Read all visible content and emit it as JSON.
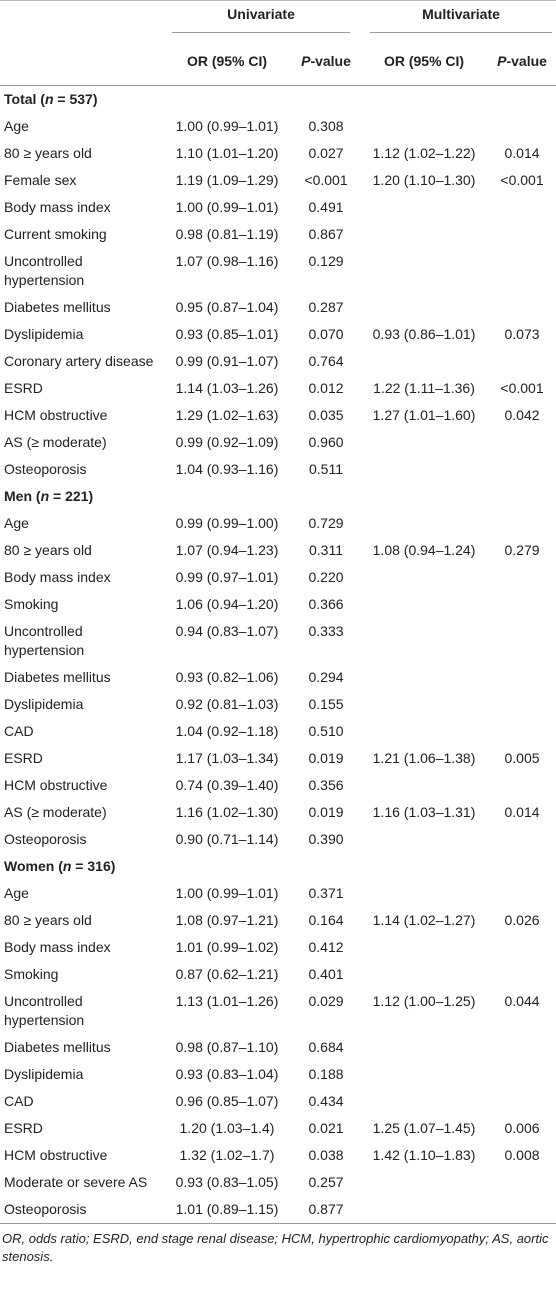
{
  "table": {
    "groups": [
      "Univariate",
      "Multivariate"
    ],
    "subheaders": {
      "or": "OR (95% CI)",
      "p": [
        "P",
        "-value"
      ]
    },
    "sections": [
      {
        "title": [
          "Total (",
          "n",
          " = 537)"
        ],
        "rows": [
          [
            "Age",
            "1.00 (0.99–1.01)",
            "0.308",
            null,
            null
          ],
          [
            "80 ≥ years old",
            "1.10 (1.01–1.20)",
            "0.027",
            "1.12 (1.02–1.22)",
            "0.014"
          ],
          [
            "Female sex",
            "1.19 (1.09–1.29)",
            "<0.001",
            "1.20 (1.10–1.30)",
            "<0.001"
          ],
          [
            "Body mass index",
            "1.00 (0.99–1.01)",
            "0.491",
            null,
            null
          ],
          [
            "Current smoking",
            "0.98 (0.81–1.19)",
            "0.867",
            null,
            null
          ],
          [
            "Uncontrolled hypertension",
            "1.07 (0.98–1.16)",
            "0.129",
            null,
            null
          ],
          [
            "Diabetes mellitus",
            "0.95 (0.87–1.04)",
            "0.287",
            null,
            null
          ],
          [
            "Dyslipidemia",
            "0.93 (0.85–1.01)",
            "0.070",
            "0.93 (0.86–1.01)",
            "0.073"
          ],
          [
            "Coronary artery disease",
            "0.99 (0.91–1.07)",
            "0.764",
            null,
            null
          ],
          [
            "ESRD",
            "1.14 (1.03–1.26)",
            "0.012",
            "1.22 (1.11–1.36)",
            "<0.001"
          ],
          [
            "HCM obstructive",
            "1.29 (1.02–1.63)",
            "0.035",
            "1.27 (1.01–1.60)",
            "0.042"
          ],
          [
            "AS (≥ moderate)",
            "0.99 (0.92–1.09)",
            "0.960",
            null,
            null
          ],
          [
            "Osteoporosis",
            "1.04 (0.93–1.16)",
            "0.511",
            null,
            null
          ]
        ]
      },
      {
        "title": [
          "Men (",
          "n",
          " = 221)"
        ],
        "rows": [
          [
            "Age",
            "0.99 (0.99–1.00)",
            "0.729",
            null,
            null
          ],
          [
            "80 ≥ years old",
            "1.07 (0.94–1.23)",
            "0.311",
            "1.08 (0.94–1.24)",
            "0.279"
          ],
          [
            "Body mass index",
            "0.99 (0.97–1.01)",
            "0.220",
            null,
            null
          ],
          [
            "Smoking",
            "1.06 (0.94–1.20)",
            "0.366",
            null,
            null
          ],
          [
            "Uncontrolled hypertension",
            "0.94 (0.83–1.07)",
            "0.333",
            null,
            null
          ],
          [
            "Diabetes mellitus",
            "0.93 (0.82–1.06)",
            "0.294",
            null,
            null
          ],
          [
            "Dyslipidemia",
            "0.92 (0.81–1.03)",
            "0.155",
            null,
            null
          ],
          [
            "CAD",
            "1.04 (0.92–1.18)",
            "0.510",
            null,
            null
          ],
          [
            "ESRD",
            "1.17 (1.03–1.34)",
            "0.019",
            "1.21 (1.06–1.38)",
            "0.005"
          ],
          [
            "HCM obstructive",
            "0.74 (0.39–1.40)",
            "0.356",
            null,
            null
          ],
          [
            "AS (≥ moderate)",
            "1.16 (1.02–1.30)",
            "0.019",
            "1.16 (1.03–1.31)",
            "0.014"
          ],
          [
            "Osteoporosis",
            "0.90 (0.71–1.14)",
            "0.390",
            null,
            null
          ]
        ]
      },
      {
        "title": [
          "Women (",
          "n",
          " = 316)"
        ],
        "rows": [
          [
            "Age",
            "1.00 (0.99–1.01)",
            "0.371",
            null,
            null
          ],
          [
            "80 ≥ years old",
            "1.08 (0.97–1.21)",
            "0.164",
            "1.14 (1.02–1.27)",
            "0.026"
          ],
          [
            "Body mass index",
            "1.01 (0.99–1.02)",
            "0.412",
            null,
            null
          ],
          [
            "Smoking",
            "0.87 (0.62–1.21)",
            "0.401",
            null,
            null
          ],
          [
            "Uncontrolled hypertension",
            "1.13 (1.01–1.26)",
            "0.029",
            "1.12 (1.00–1.25)",
            "0.044"
          ],
          [
            "Diabetes mellitus",
            "0.98 (0.87–1.10)",
            "0.684",
            null,
            null
          ],
          [
            "Dyslipidemia",
            "0.93 (0.83–1.04)",
            "0.188",
            null,
            null
          ],
          [
            "CAD",
            "0.96 (0.85–1.07)",
            "0.434",
            null,
            null
          ],
          [
            "ESRD",
            "1.20 (1.03–1.4)",
            "0.021",
            "1.25 (1.07–1.45)",
            "0.006"
          ],
          [
            "HCM obstructive",
            "1.32 (1.02–1.7)",
            "0.038",
            "1.42 (1.10–1.83)",
            "0.008"
          ],
          [
            "Moderate or severe AS",
            "0.93 (0.83–1.05)",
            "0.257",
            null,
            null
          ],
          [
            "Osteoporosis",
            "1.01 (0.89–1.15)",
            "0.877",
            null,
            null
          ]
        ]
      }
    ],
    "footnote": "OR, odds ratio; ESRD, end stage renal disease; HCM, hypertrophic cardiomyopathy; AS, aortic stenosis."
  }
}
